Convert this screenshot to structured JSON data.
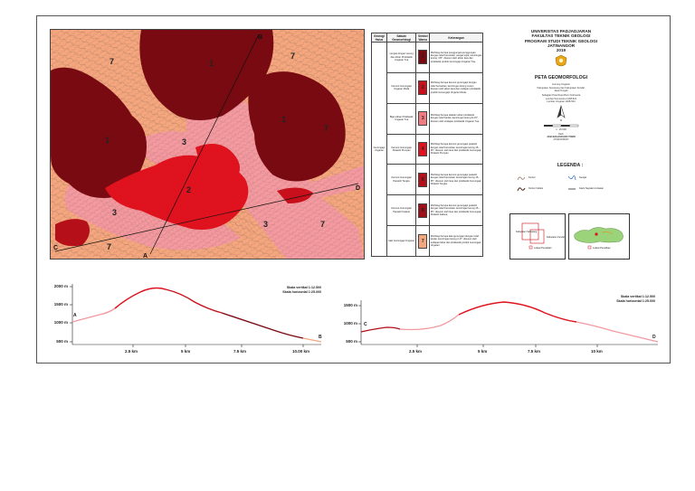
{
  "title": {
    "university": "UNIVERSITAS PADJADJARAN",
    "faculty": "FAKULTAS TEKNIK GEOLOGI",
    "program": "PROGRAM STUDI TEKNIK GEOLOGI",
    "campus": "JATINANGOR",
    "year": "2019",
    "map_title": "PETA GEOMORFOLOGI",
    "area_line1": "Gunung Ungaran",
    "area_line2": "Kabupaten Semarang dan Kabupaten Kendal,",
    "area_line3": "Jawa Tengah",
    "ref_line1": "Sebagian Peta Rupa Bumi Indonesia",
    "ref_line2": "Lembar Sumowono 1408-521",
    "ref_line3": "Lembar Ungaran 1408-534",
    "scale_text": "1 : 25.000",
    "author_label": "Oleh:",
    "author_name": "JASI BAGASKARA TOMO",
    "author_id": "270110150047",
    "north": "U"
  },
  "map": {
    "units": [
      {
        "label": "1",
        "color": "#7a0a12"
      },
      {
        "label": "2",
        "color": "#e0121e"
      },
      {
        "label": "3",
        "color": "#f29aa0"
      },
      {
        "label": "7",
        "color": "#f4a77e"
      }
    ],
    "section_labels": [
      "A",
      "B",
      "C",
      "D"
    ]
  },
  "legend_table": {
    "headers": [
      "Geologi Halus",
      "Satuan Geomorfologi",
      "Simbol Warna",
      "Keterangan"
    ],
    "group_label": "Gunungapi Ungaran",
    "rows": [
      {
        "unit": "Lengan-lengan Lereng dan Aliran Piroklastik Ungaran Tua",
        "symbol": "1",
        "color": "#7a0a12",
        "desc": "Morfologi berupa punggungan-punggungan dengan relief bervariasi, sangat terjal, kemiringan lereng >35°, disusun oleh aliran lava dan piroklastik produk Gunungapi Ungaran Tua."
      },
      {
        "unit": "Kerucut Gunungapi Ungaran Muda",
        "symbol": "2",
        "color": "#c8101c",
        "desc": "Morfologi berupa kerucut gunungapi dengan relief bervariasi, kemiringan lereng curam, disusun oleh aliran lava dan endapan piroklastik produk Gunungapi Ungaran Muda."
      },
      {
        "unit": "Bijan Aliran Piroklastik Ungaran Tua",
        "symbol": "3",
        "color": "#f07a80",
        "desc": "Morfologi berupa dataran aliran piroklastik dengan relief landai, kemiringan lereng 8–15°, disusun oleh endapan piroklastik Ungaran Tua."
      },
      {
        "unit": "Kerucut Gunungapi Parasitir Pumpan",
        "symbol": "4",
        "color": "#e0121e",
        "desc": "Morfologi berupa kerucut gunungapi parasitir dengan relief bervariasi, kemiringan lereng 15–35°, disusun oleh lava dan piroklastik Gunungapi Parasitir Pumpan."
      },
      {
        "unit": "Kerucut Gunungapi Parasitir Tengku",
        "symbol": "5",
        "color": "#b5101a",
        "desc": "Morfologi berupa kerucut gunungapi parasitir dengan relief bervariasi, kemiringan lereng 15–35°, disusun oleh lava dan piroklastik Gunungapi Parasitir Tengku."
      },
      {
        "unit": "Kerucut Gunungapi Parasitir Kalisuk",
        "symbol": "6",
        "color": "#a00e18",
        "desc": "Morfologi berupa kerucut gunungapi parasitir dengan relief bervariasi, kemiringan lereng 15–35°, disusun oleh lava dan piroklastik Gunungapi Parasitir Kalisuk."
      },
      {
        "unit": "Kaki Gunungapi Ungaran",
        "symbol": "7",
        "color": "#f4a77e",
        "desc": "Morfologi berupa kaki gunungapi dengan relief landai, kemiringan lereng 2–8°, disusun oleh endapan lahar dan piroklastik produk Gunungapi Ungaran."
      }
    ]
  },
  "legend": {
    "title": "LEGENDA :",
    "items": [
      "Kontur",
      "Sungai",
      "Kontur Indeks",
      "Garis Sayatan Lintasan"
    ]
  },
  "index_maps": {
    "left_label": "Lokasi Penelitian",
    "right_label": "Lokasi Penelitian",
    "sub_labels": [
      "Kabupaten Semarang",
      "Kabupaten Kendal"
    ]
  },
  "profile_ab": {
    "start": "A",
    "end": "B",
    "scale_v": "Skala vertikal    1:12.500",
    "scale_h": "Skala horizontal 1:25.000",
    "y_ticks": [
      "2000 m",
      "1500 m",
      "1000 m",
      "500 m"
    ],
    "x_ticks": [
      "2.5 km",
      "5 km",
      "7.5 km",
      "10.00 km"
    ]
  },
  "profile_cd": {
    "start": "C",
    "end": "D",
    "scale_v": "Skala vertikal    1:12.500",
    "scale_h": "Skala horizontal 1:25.000",
    "y_ticks": [
      "1500 m",
      "1000 m",
      "500 m"
    ],
    "x_ticks": [
      "2.5 km",
      "5 km",
      "7.5 km",
      "10 km"
    ]
  }
}
